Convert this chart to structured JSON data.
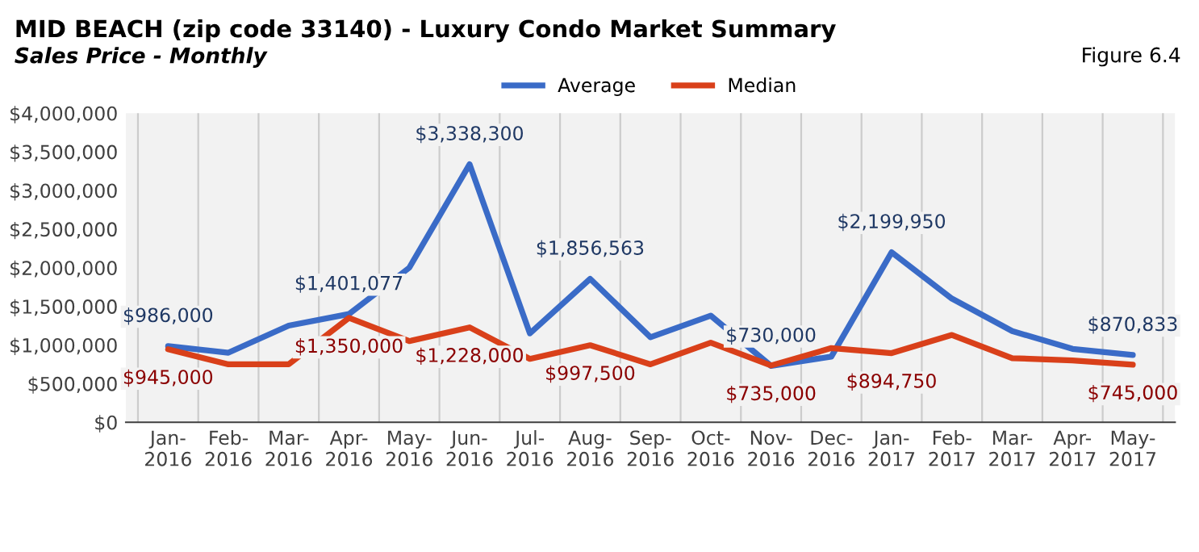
{
  "chart_data": {
    "type": "line",
    "title": "MID BEACH (zip code 33140) - Luxury Condo Market Summary",
    "subtitle": "Sales Price - Monthly",
    "annotations": [
      "Figure 6.4"
    ],
    "categories": [
      "Jan-\n2016",
      "Feb-\n2016",
      "Mar-\n2016",
      "Apr-\n2016",
      "May-\n2016",
      "Jun-\n2016",
      "Jul-\n2016",
      "Aug-\n2016",
      "Sep-\n2016",
      "Oct-\n2016",
      "Nov-\n2016",
      "Dec-\n2016",
      "Jan-\n2017",
      "Feb-\n2017",
      "Mar-\n2017",
      "Apr-\n2017",
      "May-\n2017"
    ],
    "series": [
      {
        "name": "Average",
        "color": "#3a6bc7",
        "values": [
          986000,
          900000,
          1250000,
          1401077,
          2000000,
          3338300,
          1150000,
          1856563,
          1100000,
          1380000,
          730000,
          850000,
          2199950,
          1600000,
          1180000,
          950000,
          870833
        ],
        "value_labels": [
          "$986,000",
          null,
          null,
          "$1,401,077",
          null,
          "$3,338,300",
          null,
          "$1,856,563",
          null,
          null,
          "$730,000",
          null,
          "$2,199,950",
          null,
          null,
          null,
          "$870,833"
        ]
      },
      {
        "name": "Median",
        "color": "#d9401a",
        "values": [
          945000,
          750000,
          750000,
          1350000,
          1050000,
          1228000,
          820000,
          997500,
          750000,
          1030000,
          735000,
          960000,
          894750,
          1130000,
          830000,
          800000,
          745000
        ],
        "value_labels": [
          "$945,000",
          null,
          null,
          "$1,350,000",
          null,
          "$1,228,000",
          null,
          "$997,500",
          null,
          null,
          "$735,000",
          null,
          "$894,750",
          null,
          null,
          null,
          "$745,000"
        ]
      }
    ],
    "ylim": [
      0,
      4000000
    ],
    "yticks": [
      {
        "value": 0,
        "label": "$0"
      },
      {
        "value": 500000,
        "label": "$500,000"
      },
      {
        "value": 1000000,
        "label": "$1,000,000"
      },
      {
        "value": 1500000,
        "label": "$1,500,000"
      },
      {
        "value": 2000000,
        "label": "$2,000,000"
      },
      {
        "value": 2500000,
        "label": "$2,500,000"
      },
      {
        "value": 3000000,
        "label": "$3,000,000"
      },
      {
        "value": 3500000,
        "label": "$3,500,000"
      },
      {
        "value": 4000000,
        "label": "$4,000,000"
      }
    ],
    "grid": "x",
    "legend": "top",
    "marker": "none",
    "line_style": "solid"
  }
}
